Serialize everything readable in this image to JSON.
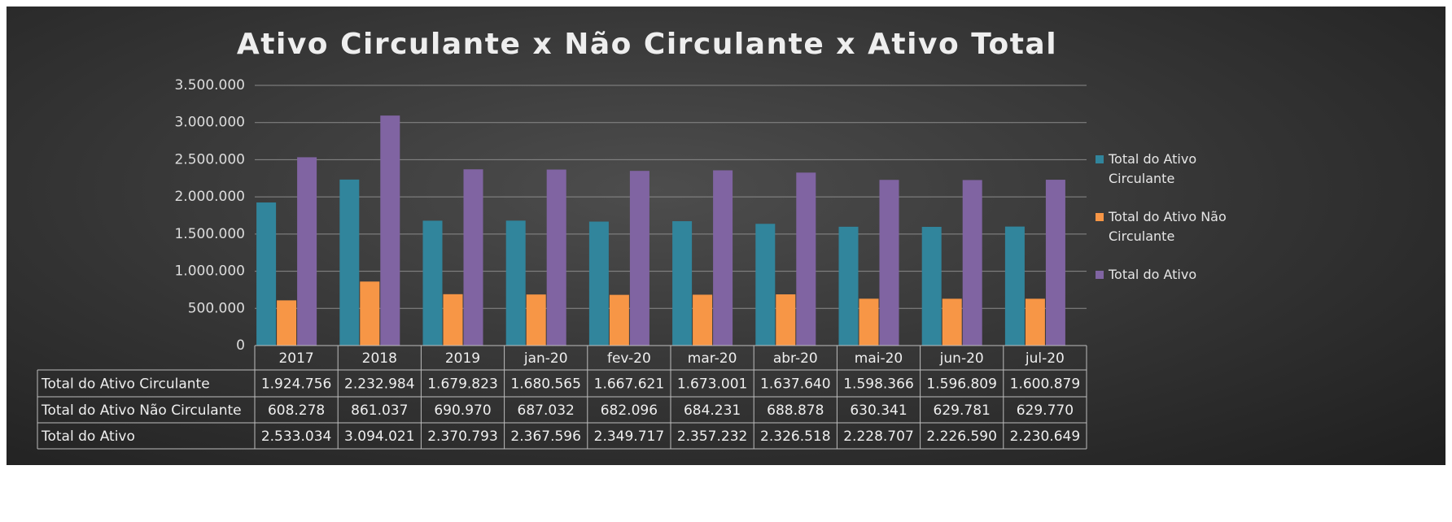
{
  "chart_data": {
    "type": "bar",
    "title": "Ativo Circulante x Não Circulante x  Ativo Total",
    "categories": [
      "2017",
      "2018",
      "2019",
      "jan-20",
      "fev-20",
      "mar-20",
      "abr-20",
      "mai-20",
      "jun-20",
      "jul-20"
    ],
    "series": [
      {
        "name": "Total do Ativo Circulante",
        "color": "#31859c",
        "values": [
          1924756,
          2232984,
          1679823,
          1680565,
          1667621,
          1673001,
          1637640,
          1598366,
          1596809,
          1600879
        ],
        "value_labels": [
          "1.924.756",
          "2.232.984",
          "1.679.823",
          "1.680.565",
          "1.667.621",
          "1.673.001",
          "1.637.640",
          "1.598.366",
          "1.596.809",
          "1.600.879"
        ]
      },
      {
        "name": "Total do Ativo Não Circulante",
        "color": "#f79646",
        "values": [
          608278,
          861037,
          690970,
          687032,
          682096,
          684231,
          688878,
          630341,
          629781,
          629770
        ],
        "value_labels": [
          "608.278",
          "861.037",
          "690.970",
          "687.032",
          "682.096",
          "684.231",
          "688.878",
          "630.341",
          "629.781",
          "629.770"
        ]
      },
      {
        "name": "Total do Ativo",
        "color": "#8064a2",
        "values": [
          2533034,
          3094021,
          2370793,
          2367596,
          2349717,
          2357232,
          2326518,
          2228707,
          2226590,
          2230649
        ],
        "value_labels": [
          "2.533.034",
          "3.094.021",
          "2.370.793",
          "2.367.596",
          "2.349.717",
          "2.357.232",
          "2.326.518",
          "2.228.707",
          "2.226.590",
          "2.230.649"
        ]
      }
    ],
    "ylim": [
      0,
      3500000
    ],
    "yticks": [
      0,
      {
        "value": 500000,
        "label": "500.000"
      },
      {
        "value": 1000000,
        "label": "1.000.000"
      },
      {
        "value": 1500000,
        "label": "1.500.000"
      },
      {
        "value": 2000000,
        "label": "2.000.000"
      },
      {
        "value": 2500000,
        "label": "2.500.000"
      },
      {
        "value": 3000000,
        "label": "3.000.000"
      },
      {
        "value": 3500000,
        "label": "3.500.000"
      }
    ],
    "grid": true,
    "legend": "right"
  }
}
